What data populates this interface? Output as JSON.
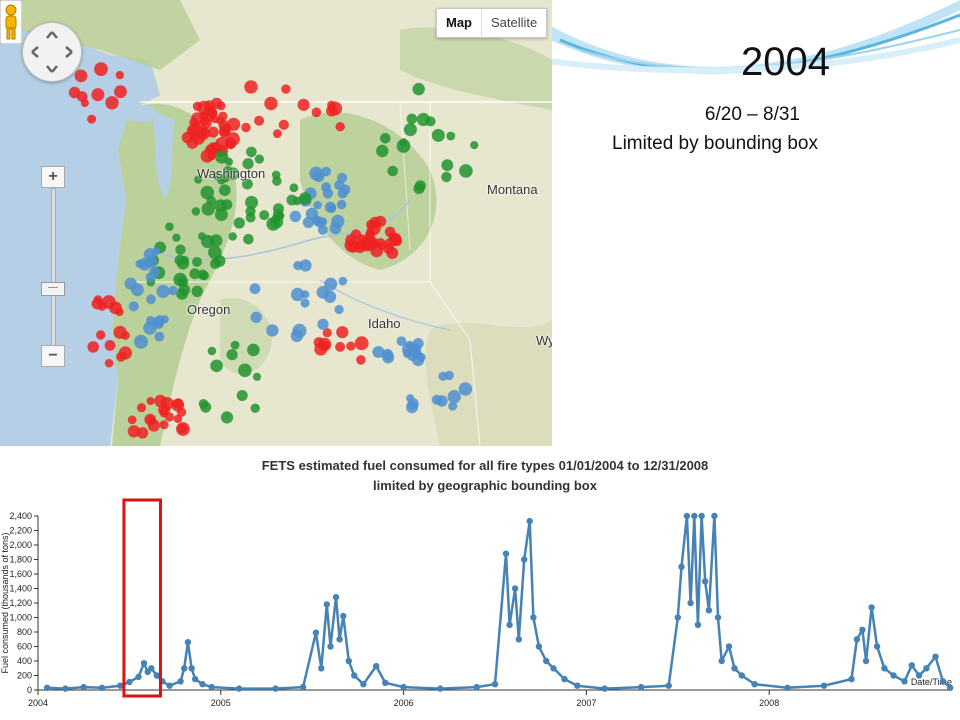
{
  "slide": {
    "title": "2004",
    "dates": "6/20 – 8/31",
    "note": "Limited by bounding box"
  },
  "map": {
    "controls": {
      "map_label": "Map",
      "satellite_label": "Satellite"
    },
    "zoom": {
      "in_label": "+",
      "out_label": "−",
      "thumb_label": "—"
    },
    "labels": {
      "washington": "Washington",
      "oregon": "Oregon",
      "idaho": "Idaho",
      "montana": "Montana",
      "wyoming": "Wy"
    },
    "colors": {
      "red": "#ee2222",
      "green": "#22932f",
      "blue": "#4f8fd0",
      "water": "#b5d0e6",
      "land": "#e7e6cf",
      "forest": "#b6ce95"
    }
  },
  "chart_data": {
    "type": "line",
    "title": "FETS estimated fuel consumed for all fire types 01/01/2004 to 12/31/2008",
    "subtitle": "limited by geographic bounding box",
    "xlabel": "Date/Time",
    "ylabel": "Fuel consumed (thousands of tons)",
    "ylim": [
      0,
      2400
    ],
    "yticks": [
      "0",
      "200",
      "400",
      "600",
      "800",
      "1,000",
      "1,200",
      "1,400",
      "1,600",
      "1,800",
      "2,000",
      "2,200",
      "2,400"
    ],
    "xticks": [
      "2004",
      "2005",
      "2006",
      "2007",
      "2008"
    ],
    "xlim": [
      2004.0,
      2009.0
    ],
    "series": [
      {
        "color": "#4682b4",
        "points": [
          [
            2004.05,
            30
          ],
          [
            2004.15,
            20
          ],
          [
            2004.25,
            40
          ],
          [
            2004.35,
            30
          ],
          [
            2004.45,
            60
          ],
          [
            2004.5,
            110
          ],
          [
            2004.55,
            180
          ],
          [
            2004.58,
            370
          ],
          [
            2004.6,
            250
          ],
          [
            2004.62,
            300
          ],
          [
            2004.65,
            200
          ],
          [
            2004.68,
            120
          ],
          [
            2004.72,
            60
          ],
          [
            2004.78,
            120
          ],
          [
            2004.8,
            300
          ],
          [
            2004.82,
            660
          ],
          [
            2004.84,
            300
          ],
          [
            2004.86,
            150
          ],
          [
            2004.9,
            80
          ],
          [
            2004.95,
            40
          ],
          [
            2005.1,
            20
          ],
          [
            2005.3,
            20
          ],
          [
            2005.45,
            40
          ],
          [
            2005.52,
            790
          ],
          [
            2005.55,
            300
          ],
          [
            2005.58,
            1180
          ],
          [
            2005.6,
            600
          ],
          [
            2005.63,
            1280
          ],
          [
            2005.65,
            700
          ],
          [
            2005.67,
            1020
          ],
          [
            2005.7,
            400
          ],
          [
            2005.73,
            200
          ],
          [
            2005.78,
            80
          ],
          [
            2005.85,
            330
          ],
          [
            2005.9,
            100
          ],
          [
            2006.0,
            40
          ],
          [
            2006.2,
            20
          ],
          [
            2006.4,
            40
          ],
          [
            2006.5,
            80
          ],
          [
            2006.56,
            1880
          ],
          [
            2006.58,
            900
          ],
          [
            2006.61,
            1400
          ],
          [
            2006.63,
            700
          ],
          [
            2006.66,
            1800
          ],
          [
            2006.69,
            2330
          ],
          [
            2006.71,
            1000
          ],
          [
            2006.74,
            600
          ],
          [
            2006.78,
            400
          ],
          [
            2006.82,
            300
          ],
          [
            2006.88,
            150
          ],
          [
            2006.95,
            60
          ],
          [
            2007.1,
            20
          ],
          [
            2007.3,
            40
          ],
          [
            2007.45,
            60
          ],
          [
            2007.5,
            1000
          ],
          [
            2007.52,
            1700
          ],
          [
            2007.55,
            2400
          ],
          [
            2007.57,
            1200
          ],
          [
            2007.59,
            2400
          ],
          [
            2007.61,
            900
          ],
          [
            2007.63,
            2400
          ],
          [
            2007.65,
            1500
          ],
          [
            2007.67,
            1100
          ],
          [
            2007.7,
            2400
          ],
          [
            2007.72,
            1000
          ],
          [
            2007.74,
            400
          ],
          [
            2007.78,
            600
          ],
          [
            2007.81,
            300
          ],
          [
            2007.85,
            200
          ],
          [
            2007.92,
            80
          ],
          [
            2008.1,
            30
          ],
          [
            2008.3,
            60
          ],
          [
            2008.45,
            150
          ],
          [
            2008.48,
            700
          ],
          [
            2008.51,
            830
          ],
          [
            2008.53,
            400
          ],
          [
            2008.56,
            1140
          ],
          [
            2008.59,
            600
          ],
          [
            2008.63,
            300
          ],
          [
            2008.68,
            200
          ],
          [
            2008.74,
            120
          ],
          [
            2008.78,
            340
          ],
          [
            2008.82,
            200
          ],
          [
            2008.86,
            300
          ],
          [
            2008.91,
            460
          ],
          [
            2008.95,
            120
          ],
          [
            2008.99,
            30
          ]
        ]
      }
    ],
    "highlight": {
      "x_start": 2004.47,
      "x_end": 2004.67,
      "color": "#dd1111"
    }
  }
}
